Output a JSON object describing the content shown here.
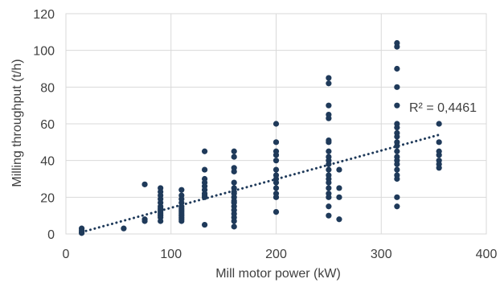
{
  "chart_data": {
    "type": "scatter",
    "xlabel": "Mill motor power (kW)",
    "ylabel": "Milling throughput (t/h)",
    "xlim": [
      0,
      400
    ],
    "ylim": [
      0,
      120
    ],
    "x_ticks": [
      "0",
      "100",
      "200",
      "300",
      "400"
    ],
    "y_ticks": [
      "0",
      "20",
      "40",
      "60",
      "80",
      "100",
      "120"
    ],
    "grid": true,
    "annotation": "R² = 0,4461",
    "marker_color": "#1f3a5a",
    "trendline": {
      "type": "linear",
      "x": [
        15,
        355
      ],
      "y": [
        1.0,
        54.0
      ],
      "style": "dotted"
    },
    "points": [
      [
        15,
        3
      ],
      [
        15,
        2
      ],
      [
        15,
        1
      ],
      [
        15,
        0.5
      ],
      [
        55,
        3
      ],
      [
        75,
        27
      ],
      [
        75,
        8
      ],
      [
        75,
        7
      ],
      [
        90,
        25
      ],
      [
        90,
        23
      ],
      [
        90,
        21
      ],
      [
        90,
        19
      ],
      [
        90,
        17
      ],
      [
        90,
        15
      ],
      [
        90,
        14
      ],
      [
        90,
        13
      ],
      [
        90,
        12
      ],
      [
        90,
        11
      ],
      [
        90,
        10
      ],
      [
        90,
        9
      ],
      [
        90,
        7
      ],
      [
        110,
        24
      ],
      [
        110,
        21
      ],
      [
        110,
        19
      ],
      [
        110,
        17
      ],
      [
        110,
        15
      ],
      [
        110,
        14
      ],
      [
        110,
        13
      ],
      [
        110,
        12
      ],
      [
        110,
        11
      ],
      [
        110,
        10
      ],
      [
        110,
        9
      ],
      [
        110,
        8
      ],
      [
        110,
        7
      ],
      [
        132,
        45
      ],
      [
        132,
        35
      ],
      [
        132,
        30
      ],
      [
        132,
        28
      ],
      [
        132,
        26
      ],
      [
        132,
        24
      ],
      [
        132,
        22
      ],
      [
        132,
        21
      ],
      [
        132,
        20
      ],
      [
        132,
        5
      ],
      [
        160,
        45
      ],
      [
        160,
        42
      ],
      [
        160,
        36
      ],
      [
        160,
        34
      ],
      [
        160,
        28
      ],
      [
        160,
        25
      ],
      [
        160,
        23
      ],
      [
        160,
        22
      ],
      [
        160,
        20
      ],
      [
        160,
        18
      ],
      [
        160,
        17
      ],
      [
        160,
        15
      ],
      [
        160,
        13
      ],
      [
        160,
        11
      ],
      [
        160,
        9
      ],
      [
        160,
        7
      ],
      [
        160,
        4
      ],
      [
        200,
        60
      ],
      [
        200,
        50
      ],
      [
        200,
        45
      ],
      [
        200,
        43
      ],
      [
        200,
        40
      ],
      [
        200,
        35
      ],
      [
        200,
        32
      ],
      [
        200,
        30
      ],
      [
        200,
        28
      ],
      [
        200,
        25
      ],
      [
        200,
        22
      ],
      [
        200,
        20
      ],
      [
        200,
        12
      ],
      [
        250,
        85
      ],
      [
        250,
        82
      ],
      [
        250,
        70
      ],
      [
        250,
        65
      ],
      [
        250,
        63
      ],
      [
        250,
        51
      ],
      [
        250,
        50
      ],
      [
        250,
        45
      ],
      [
        250,
        42
      ],
      [
        250,
        40
      ],
      [
        250,
        38
      ],
      [
        250,
        35
      ],
      [
        250,
        32
      ],
      [
        250,
        30
      ],
      [
        250,
        28
      ],
      [
        250,
        25
      ],
      [
        250,
        22
      ],
      [
        250,
        20
      ],
      [
        250,
        15
      ],
      [
        250,
        10
      ],
      [
        260,
        35
      ],
      [
        260,
        25
      ],
      [
        260,
        20
      ],
      [
        260,
        8
      ],
      [
        315,
        104
      ],
      [
        315,
        102
      ],
      [
        315,
        90
      ],
      [
        315,
        80
      ],
      [
        315,
        70
      ],
      [
        315,
        60
      ],
      [
        315,
        58
      ],
      [
        315,
        55
      ],
      [
        315,
        53
      ],
      [
        315,
        50
      ],
      [
        315,
        48
      ],
      [
        315,
        45
      ],
      [
        315,
        42
      ],
      [
        315,
        40
      ],
      [
        315,
        38
      ],
      [
        315,
        35
      ],
      [
        315,
        32
      ],
      [
        315,
        30
      ],
      [
        315,
        20
      ],
      [
        315,
        15
      ],
      [
        355,
        60
      ],
      [
        355,
        50
      ],
      [
        355,
        45
      ],
      [
        355,
        43
      ],
      [
        355,
        40
      ],
      [
        355,
        38
      ],
      [
        355,
        36
      ]
    ]
  }
}
